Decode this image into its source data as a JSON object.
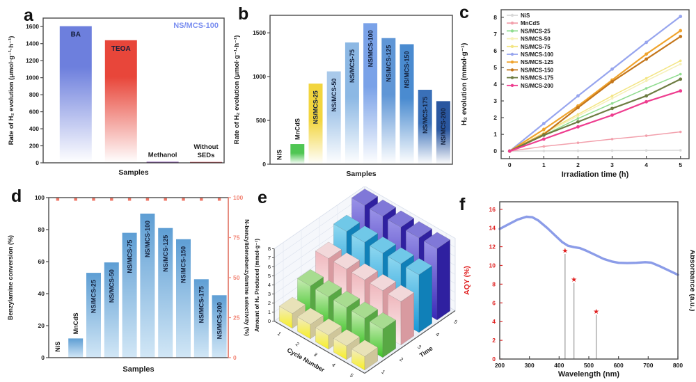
{
  "figure": {
    "background": "#ffffff"
  },
  "chart_data": [
    {
      "id": "a",
      "letter": "a",
      "type": "bar",
      "ylabel": "Rate of H₂ evolution (μmol·g⁻¹·h⁻¹)",
      "xlabel": "Samples",
      "annotation": "NS/MCS-100",
      "annotation_color": "#7b8ff0",
      "ylim": [
        0,
        1700
      ],
      "yticks": [
        0,
        200,
        400,
        600,
        800,
        1000,
        1200,
        1400,
        1600
      ],
      "categories": [
        "BA",
        "TEOA",
        "Methanol",
        "Without SEDs"
      ],
      "values": [
        1605,
        1440,
        12,
        10
      ],
      "bar_colors": [
        "#6d7fdd",
        "#e8463a",
        "#7a3fa8",
        "#c02838"
      ],
      "label_layout": [
        "inside",
        "inside",
        "above",
        "above2"
      ],
      "bar_fracs": [
        0.18,
        0.43,
        0.66,
        0.9
      ]
    },
    {
      "id": "b",
      "letter": "b",
      "type": "bar-rot",
      "ylabel": "Rate of H₂ evolution (μmol·g⁻¹·h⁻¹)",
      "xlabel": "Samples",
      "ylim": [
        0,
        1700
      ],
      "yticks": [
        0,
        500,
        1000,
        1500
      ],
      "categories": [
        "NiS",
        "MnCdS",
        "NS/MCS-25",
        "NS/MCS-50",
        "NS/MCS-75",
        "NS/MCS-100",
        "NS/MCS-125",
        "NS/MCS-150",
        "NS/MCS-175",
        "NS/MCS-200"
      ],
      "values": [
        5,
        230,
        920,
        1060,
        1390,
        1610,
        1440,
        1370,
        850,
        720
      ],
      "bar_colors": [
        "#9a9a9a",
        "#4fc653",
        "#f2d53e",
        "#a9c9ea",
        "#8cb8e4",
        "#7aa2e8",
        "#5f96d6",
        "#4a8bd0",
        "#3a70b8",
        "#2a57a0"
      ]
    },
    {
      "id": "c",
      "letter": "c",
      "type": "line",
      "xlabel": "Irradiation time (h)",
      "ylabel": "H₂ evolution (mmol·g⁻¹)",
      "xlim": [
        0,
        5
      ],
      "ylim": [
        0,
        8
      ],
      "xticks": [
        0,
        1,
        2,
        3,
        4,
        5
      ],
      "yticks": [
        0,
        1,
        2,
        3,
        4,
        5,
        6,
        7,
        8
      ],
      "x": [
        0,
        1,
        2,
        3,
        4,
        5
      ],
      "legend_position": "top-left",
      "series": [
        {
          "name": "NiS",
          "color": "#d9d9d9",
          "values": [
            0,
            0.01,
            0.02,
            0.03,
            0.04,
            0.05
          ]
        },
        {
          "name": "MnCdS",
          "color": "#f2a0ac",
          "values": [
            0,
            0.28,
            0.5,
            0.72,
            0.92,
            1.15
          ]
        },
        {
          "name": "NS/MCS-25",
          "color": "#8fdc8f",
          "values": [
            0,
            0.95,
            1.95,
            2.85,
            3.75,
            4.6
          ]
        },
        {
          "name": "NS/MCS-50",
          "color": "#f6f0b8",
          "values": [
            0,
            1.05,
            2.1,
            3.15,
            4.2,
            5.2
          ]
        },
        {
          "name": "NS/MCS-75",
          "color": "#f3e584",
          "values": [
            0,
            1.1,
            2.2,
            3.3,
            4.35,
            5.4
          ]
        },
        {
          "name": "NS/MCS-100",
          "color": "#97a5ee",
          "values": [
            0,
            1.65,
            3.3,
            4.9,
            6.5,
            8.05
          ]
        },
        {
          "name": "NS/MCS-125",
          "color": "#f0a32c",
          "values": [
            0,
            1.3,
            2.7,
            4.25,
            5.8,
            7.2
          ]
        },
        {
          "name": "NS/MCS-150",
          "color": "#c4761b",
          "values": [
            0,
            1.0,
            2.6,
            4.15,
            5.5,
            6.85
          ]
        },
        {
          "name": "NS/MCS-175",
          "color": "#6d7c42",
          "values": [
            0,
            0.95,
            1.75,
            2.55,
            3.3,
            4.3
          ]
        },
        {
          "name": "NS/MCS-200",
          "color": "#ee3d8f",
          "values": [
            0,
            0.72,
            1.45,
            2.15,
            2.95,
            3.6
          ]
        }
      ]
    },
    {
      "id": "d",
      "letter": "d",
      "type": "bar-dual",
      "ylabel_left": "Benzylamine conversion (%)",
      "ylabel_right": "N-benzylidenebenzylamine selectivity (%)",
      "xlabel": "Samples",
      "ylim_left": [
        0,
        100
      ],
      "yticks_left": [
        0,
        20,
        40,
        60,
        80,
        100
      ],
      "ylim_right": [
        0,
        100
      ],
      "yticks_right": [
        0,
        25,
        50,
        75,
        100
      ],
      "right_axis_color": "#f28272",
      "marker_color": "#f07868",
      "categories": [
        "NiS",
        "MnCdS",
        "NS/MCS-25",
        "NS/MCS-50",
        "NS/MCS-75",
        "NS/MCS-100",
        "NS/MCS-125",
        "NS/MCS-150",
        "NS/MCS-175",
        "NS/MCS-200"
      ],
      "conversion": [
        1,
        12,
        53,
        59.5,
        78,
        90,
        81,
        74,
        49,
        39
      ],
      "selectivity": [
        99,
        99,
        99,
        99,
        99,
        99,
        99,
        99,
        99,
        99
      ],
      "bar_gradient": [
        "#5e9ed4",
        "#d2e7f6"
      ]
    },
    {
      "id": "e",
      "letter": "e",
      "type": "bar3d",
      "zlabel": "Amount of H₂ Produced (mmol·g⁻¹)",
      "xlabel": "Cycle Number",
      "ylabel": "Time",
      "zlim": [
        0,
        8
      ],
      "zticks": [
        0,
        1,
        2,
        3,
        4,
        5,
        6,
        7,
        8
      ],
      "cycles": [
        1,
        2,
        3,
        4,
        5
      ],
      "times": [
        1,
        2,
        3,
        4,
        5
      ],
      "values": [
        [
          1.62,
          1.58,
          1.55,
          1.52,
          1.5
        ],
        [
          3.3,
          3.26,
          3.22,
          3.18,
          3.15
        ],
        [
          4.95,
          4.92,
          4.88,
          4.85,
          4.8
        ],
        [
          6.55,
          6.5,
          6.45,
          6.42,
          6.38
        ],
        [
          8.05,
          8.0,
          7.95,
          7.92,
          7.88
        ]
      ],
      "row_colors": [
        {
          "front_top": "#f2ecc4",
          "front_bottom": "#f7ef25",
          "side": "#cfc69a",
          "top": "#e8e2b8"
        },
        {
          "front_top": "#c9ecb4",
          "front_bottom": "#3ec428",
          "side": "#58a844",
          "top": "#a8dc90"
        },
        {
          "front_top": "#efb6bc",
          "front_bottom": "#fdf0f0",
          "side": "#d89aa0",
          "top": "#f2d8da"
        },
        {
          "front_top": "#8fd8f0",
          "front_bottom": "#1898d8",
          "side": "#1080b8",
          "top": "#70c8e8"
        },
        {
          "front_top": "#9a93e8",
          "front_bottom": "#3a28b8",
          "side": "#2f20a0",
          "top": "#8078d8"
        }
      ]
    },
    {
      "id": "f",
      "letter": "f",
      "type": "spectrum",
      "xlabel": "Wavelength (nm)",
      "ylabel_left": "AQY (%)",
      "ylabel_right": "Absorbance (a.u.)",
      "xlim": [
        200,
        800
      ],
      "xticks": [
        200,
        300,
        400,
        500,
        600,
        700,
        800
      ],
      "ylim": [
        0,
        16.8
      ],
      "yticks": [
        0,
        2,
        4,
        6,
        8,
        10,
        12,
        14,
        16
      ],
      "aqy_color": "#e02020",
      "curve_color": "#8b9ce8",
      "stem_color": "#9a9a9a",
      "absorbance_x": [
        200,
        230,
        260,
        290,
        310,
        330,
        360,
        390,
        410,
        430,
        450,
        470,
        490,
        520,
        550,
        580,
        600,
        630,
        660,
        690,
        710,
        740,
        770,
        800
      ],
      "absorbance_y": [
        13.9,
        14.4,
        14.9,
        15.2,
        15.15,
        14.8,
        14.0,
        13.1,
        12.5,
        12.1,
        11.95,
        11.85,
        11.6,
        11.15,
        10.7,
        10.4,
        10.28,
        10.25,
        10.28,
        10.35,
        10.3,
        9.9,
        9.45,
        9.0
      ],
      "aqy_points": {
        "x": [
          420,
          450,
          525
        ],
        "y": [
          11.6,
          8.5,
          5.1
        ]
      }
    }
  ]
}
